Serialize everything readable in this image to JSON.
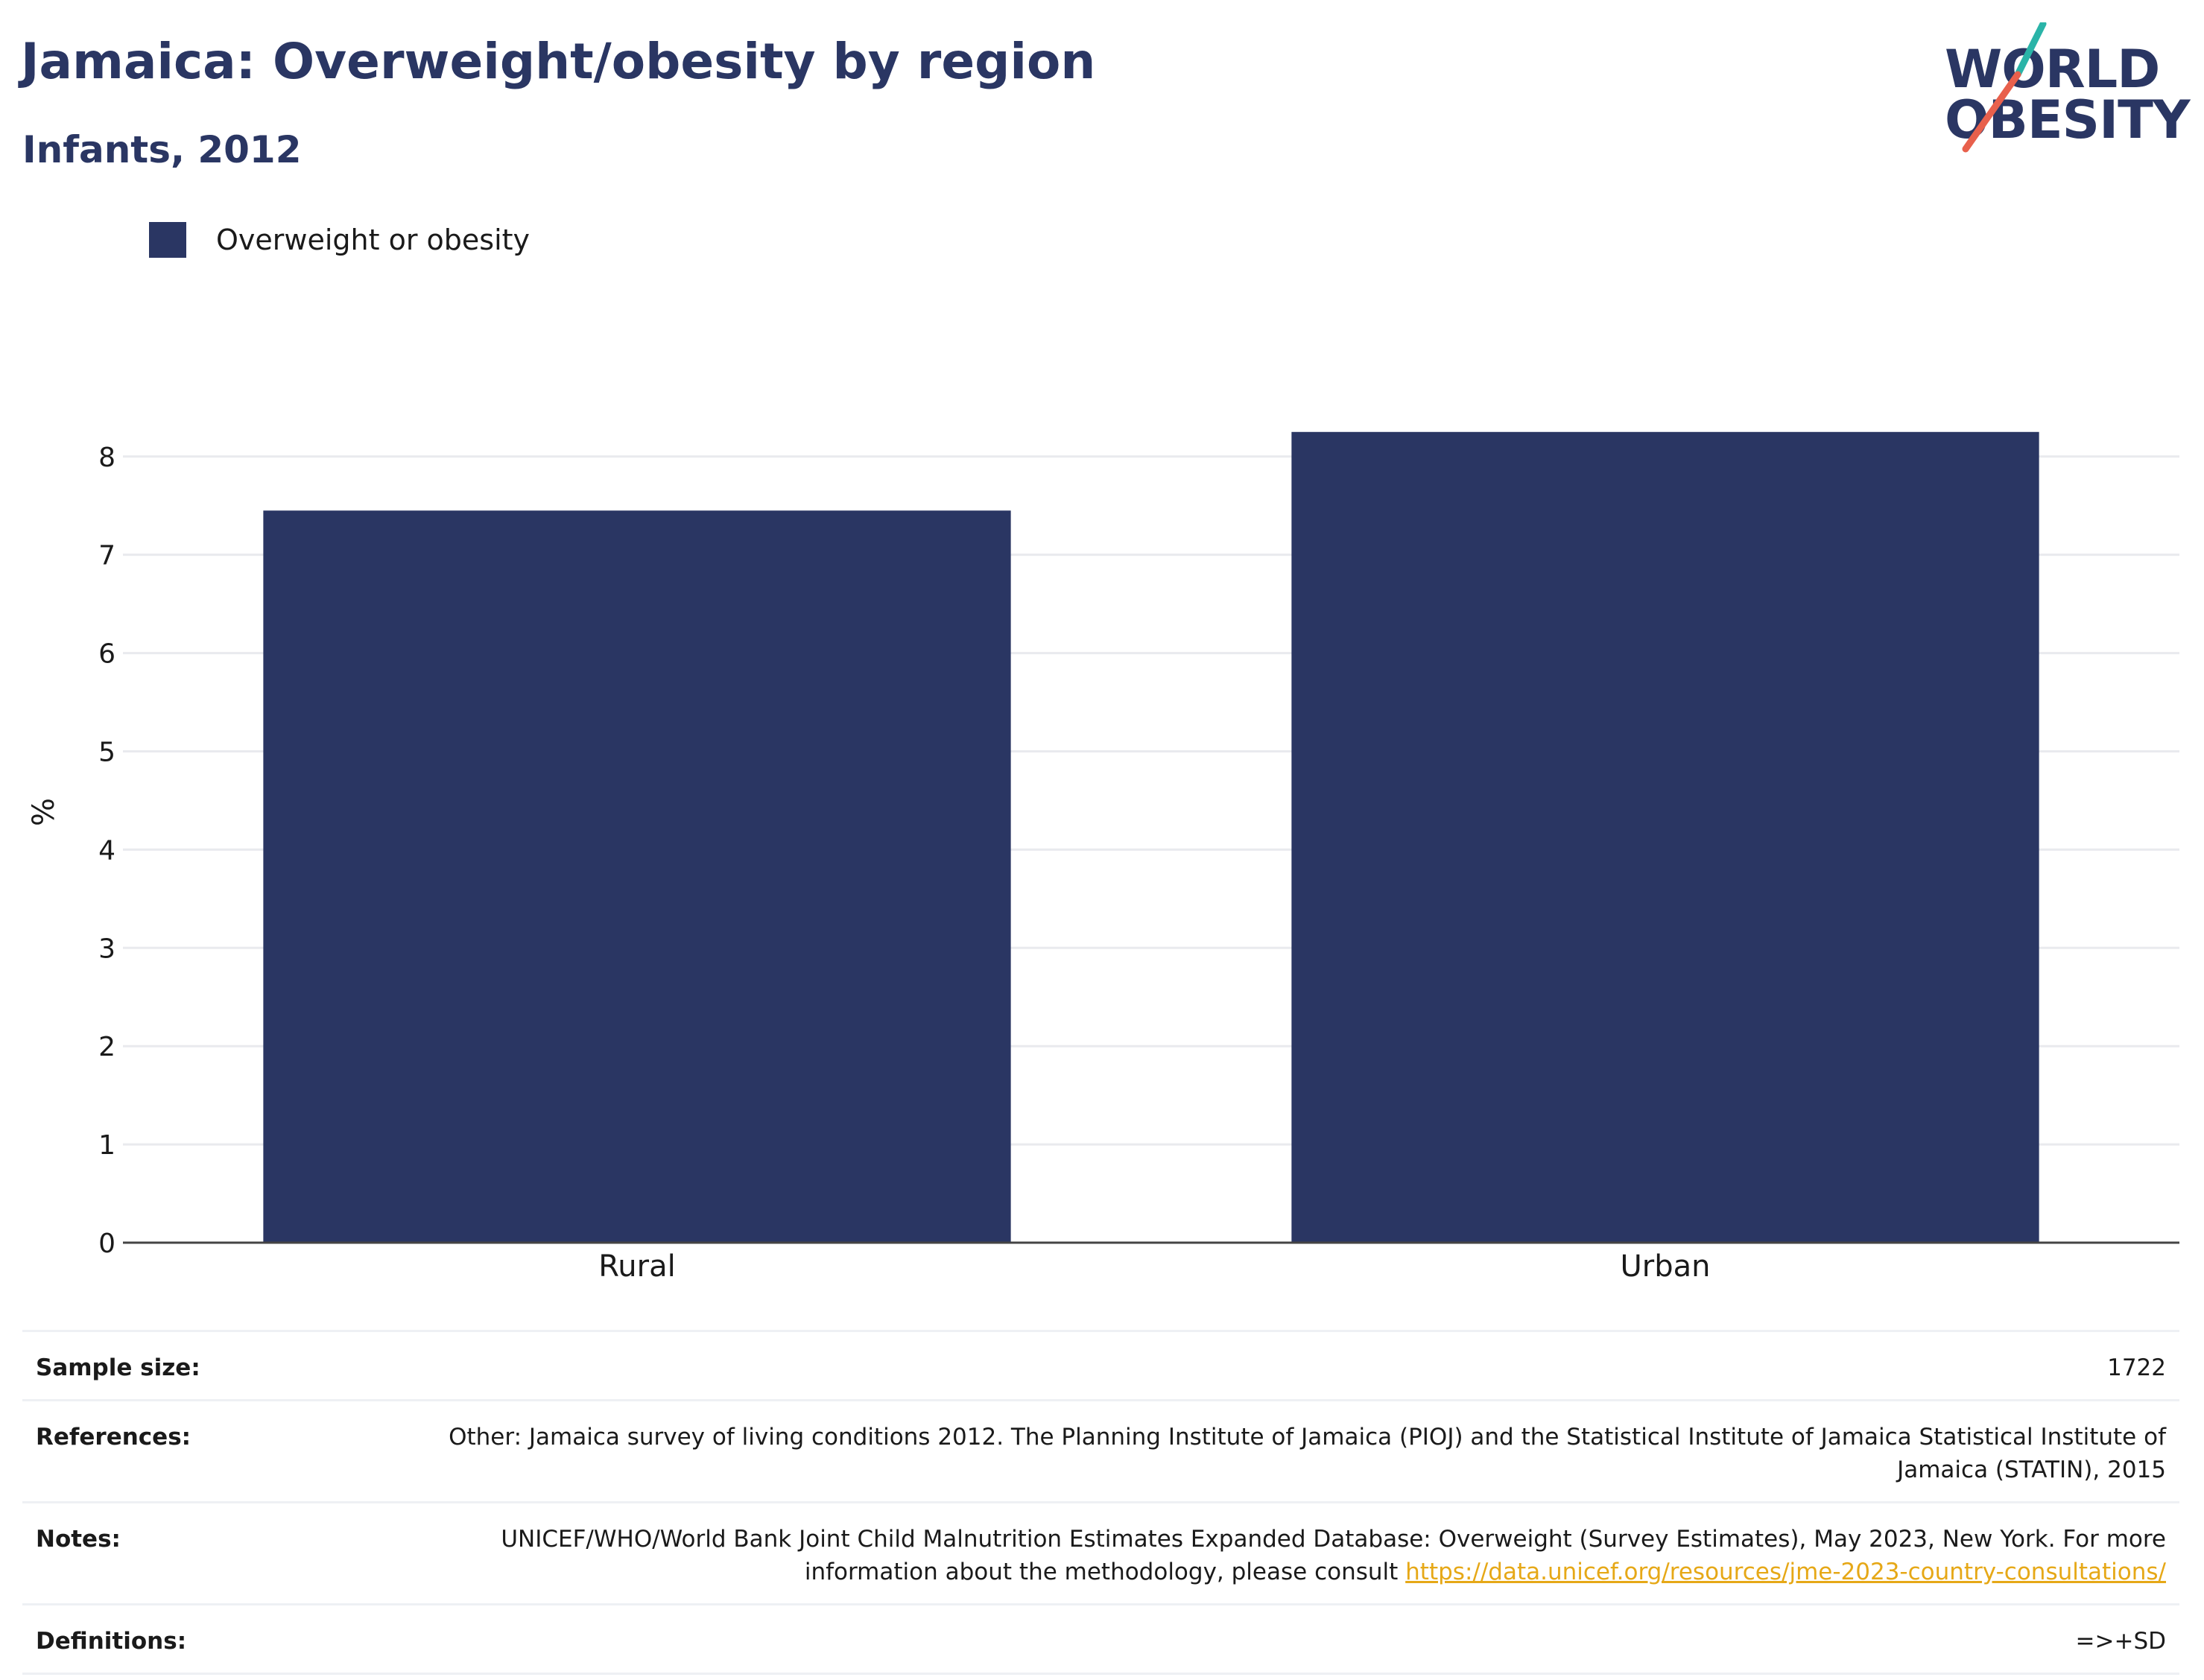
{
  "header": {
    "title": "Jamaica: Overweight/obesity by region",
    "subtitle": "Infants, 2012"
  },
  "logo": {
    "line1": "WORLD",
    "line2": "OBESITY",
    "accent_colors": [
      "#2ab4a8",
      "#e8604c"
    ]
  },
  "legend": {
    "label": "Overweight or obesity",
    "color": "#2a3663"
  },
  "chart_data": {
    "type": "bar",
    "categories": [
      "Rural",
      "Urban"
    ],
    "series": [
      {
        "name": "Overweight or obesity",
        "values": [
          7.45,
          8.25
        ],
        "color": "#2a3663"
      }
    ],
    "ylabel": "%",
    "xlabel": "",
    "ylim": [
      0,
      8.4
    ],
    "yticks": [
      0,
      1,
      2,
      3,
      4,
      5,
      6,
      7,
      8
    ],
    "grid": true,
    "legend_position": "top-left"
  },
  "info": {
    "sample_size_label": "Sample size:",
    "sample_size_value": "1722",
    "references_label": "References:",
    "references_value": "Other: Jamaica survey of living conditions 2012. The Planning Institute of Jamaica (PIOJ) and the Statistical Institute of Jamaica Statistical Institute of Jamaica (STATIN), 2015",
    "notes_label": "Notes:",
    "notes_value": "UNICEF/WHO/World Bank Joint Child Malnutrition Estimates Expanded Database: Overweight (Survey Estimates), May 2023, New York. For more information about the methodology, please consult",
    "notes_link": "https://data.unicef.org/resources/jme-2023-country-consultations/",
    "definitions_label": "Definitions:",
    "definitions_value": "=>+SD"
  }
}
